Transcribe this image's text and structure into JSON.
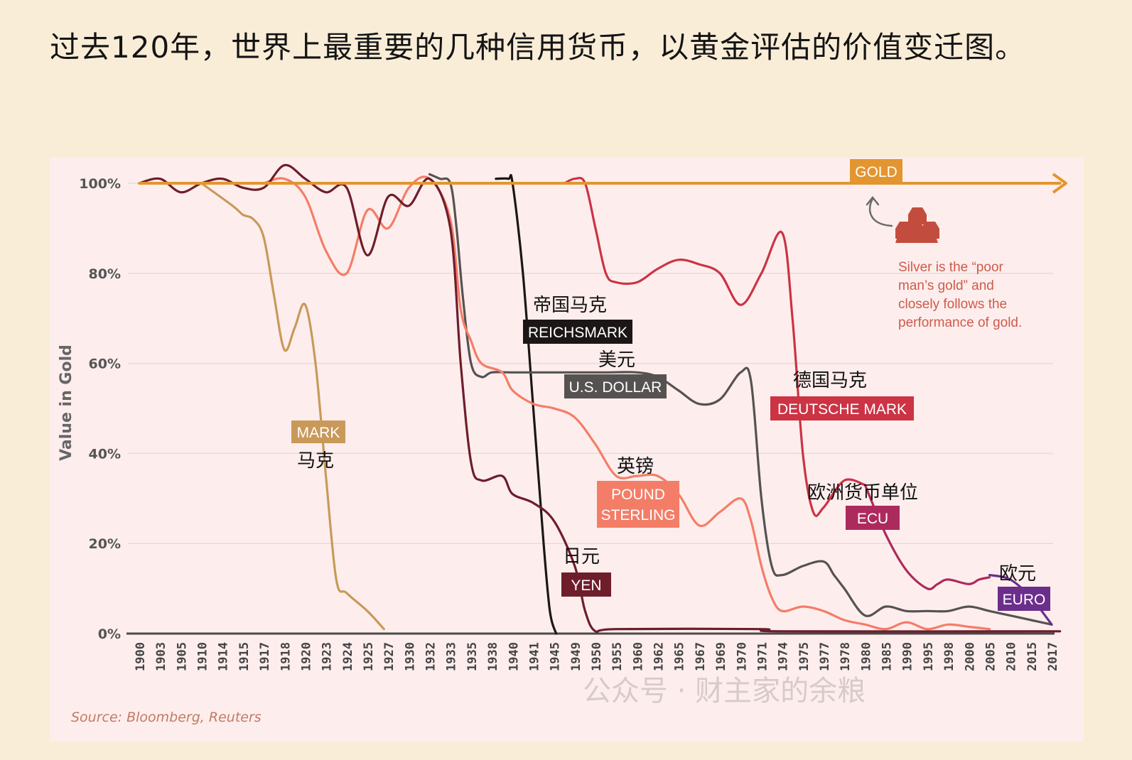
{
  "heading": "过去120年，世界上最重要的几种信用货币，以黄金评估的价值变迁图。",
  "watermark": "公众号 · 财主家的余粮",
  "chart_data": {
    "type": "line",
    "title": "",
    "xlabel": "",
    "ylabel": "Value in Gold",
    "ylim": [
      0,
      100
    ],
    "yticks": [
      "0%",
      "20%",
      "40%",
      "60%",
      "80%",
      "100%"
    ],
    "x_ticks": [
      "1900",
      "1903",
      "1905",
      "1910",
      "1914",
      "1915",
      "1917",
      "1918",
      "1920",
      "1923",
      "1924",
      "1925",
      "1927",
      "1930",
      "1932",
      "1933",
      "1935",
      "1938",
      "1940",
      "1941",
      "1945",
      "1949",
      "1950",
      "1955",
      "1960",
      "1962",
      "1965",
      "1967",
      "1969",
      "1970",
      "1971",
      "1974",
      "1975",
      "1977",
      "1978",
      "1980",
      "1985",
      "1990",
      "1995",
      "1998",
      "2000",
      "2005",
      "2010",
      "2015",
      "2017"
    ],
    "grid": true,
    "source": "Source: Bloomberg, Reuters",
    "annotation": "Silver is the “poor man’s gold” and closely follows the performance of gold.",
    "colors": {
      "gold": "#e3952f",
      "mark": "#c9995a",
      "reichsmark": "#1c1616",
      "us_dollar": "#565252",
      "pound": "#f47d67",
      "yen": "#6e1d2b",
      "deutsche_mark": "#cc3344",
      "ecu": "#ad2a5d",
      "euro": "#6b2e8b"
    },
    "series": [
      {
        "name": "GOLD",
        "label_cn": "",
        "color": "#e3952f",
        "points": [
          [
            0,
            100
          ],
          [
            44.4,
            100
          ]
        ]
      },
      {
        "name": "MARK",
        "label_cn": "马克",
        "color": "#c9995a",
        "points": [
          [
            3,
            100
          ],
          [
            4.5,
            95
          ],
          [
            5,
            93
          ],
          [
            5.5,
            92
          ],
          [
            6,
            88
          ],
          [
            6.5,
            75
          ],
          [
            7,
            63
          ],
          [
            7.5,
            68
          ],
          [
            8,
            73
          ],
          [
            8.5,
            60
          ],
          [
            9,
            35
          ],
          [
            9.5,
            12
          ],
          [
            10,
            9
          ],
          [
            11,
            5
          ],
          [
            11.8,
            1
          ]
        ]
      },
      {
        "name": "REICHSMARK",
        "label_cn": "帝国马克",
        "color": "#1c1616",
        "points": [
          [
            17.2,
            101
          ],
          [
            17.8,
            101
          ],
          [
            18,
            100
          ],
          [
            18.5,
            80
          ],
          [
            19,
            50
          ],
          [
            19.5,
            20
          ],
          [
            19.8,
            5
          ],
          [
            20.1,
            0
          ]
        ]
      },
      {
        "name": "U.S. DOLLAR",
        "label_cn": "美元",
        "color": "#565252",
        "points": [
          [
            14,
            102
          ],
          [
            14.5,
            101
          ],
          [
            15,
            100
          ],
          [
            15.3,
            90
          ],
          [
            15.6,
            75
          ],
          [
            16,
            60
          ],
          [
            16.5,
            57
          ],
          [
            17,
            58
          ],
          [
            18,
            58
          ],
          [
            21,
            58
          ],
          [
            22.5,
            58
          ],
          [
            24,
            58
          ],
          [
            25,
            57
          ],
          [
            26,
            54
          ],
          [
            27,
            51
          ],
          [
            28,
            52
          ],
          [
            29,
            58
          ],
          [
            29.5,
            56
          ],
          [
            30,
            30
          ],
          [
            30.5,
            15
          ],
          [
            31,
            13
          ],
          [
            32,
            15
          ],
          [
            33,
            16
          ],
          [
            33.5,
            13
          ],
          [
            34,
            10
          ],
          [
            35,
            4
          ],
          [
            36,
            6
          ],
          [
            37,
            5
          ],
          [
            38,
            5
          ],
          [
            39,
            5
          ],
          [
            40,
            6
          ],
          [
            41,
            5
          ],
          [
            42,
            4
          ],
          [
            43,
            3
          ],
          [
            44,
            2
          ]
        ]
      },
      {
        "name": "POUND STERLING",
        "label_cn": "英镑",
        "color": "#f47d67",
        "points": [
          [
            6,
            100
          ],
          [
            7,
            101
          ],
          [
            8,
            97
          ],
          [
            9,
            85
          ],
          [
            10,
            80
          ],
          [
            11,
            94
          ],
          [
            12,
            90
          ],
          [
            13,
            99
          ],
          [
            14,
            101
          ],
          [
            15,
            92
          ],
          [
            15.5,
            72
          ],
          [
            16,
            65
          ],
          [
            16.5,
            60
          ],
          [
            17.5,
            58
          ],
          [
            18,
            54
          ],
          [
            19,
            51
          ],
          [
            20,
            50
          ],
          [
            21,
            48
          ],
          [
            22,
            42
          ],
          [
            23,
            35
          ],
          [
            24,
            35
          ],
          [
            25,
            35
          ],
          [
            26,
            31
          ],
          [
            27,
            24
          ],
          [
            28,
            27
          ],
          [
            29,
            30
          ],
          [
            29.5,
            25
          ],
          [
            30,
            15
          ],
          [
            30.5,
            8
          ],
          [
            31,
            5
          ],
          [
            32,
            6
          ],
          [
            33,
            5
          ],
          [
            34,
            3
          ],
          [
            35,
            2
          ],
          [
            36,
            1
          ],
          [
            37,
            2.5
          ],
          [
            38,
            1
          ],
          [
            39,
            2
          ],
          [
            40,
            1.5
          ],
          [
            41,
            1
          ]
        ]
      },
      {
        "name": "YEN",
        "label_cn": "日元",
        "color": "#6e1d2b",
        "points": [
          [
            0,
            100
          ],
          [
            1,
            101
          ],
          [
            2,
            98
          ],
          [
            3,
            100
          ],
          [
            4,
            101
          ],
          [
            5,
            99
          ],
          [
            6,
            99
          ],
          [
            7,
            104
          ],
          [
            8,
            101
          ],
          [
            9,
            98
          ],
          [
            10,
            99
          ],
          [
            11,
            84
          ],
          [
            12,
            97
          ],
          [
            13,
            95
          ],
          [
            14,
            101
          ],
          [
            15,
            90
          ],
          [
            15.5,
            60
          ],
          [
            16,
            38
          ],
          [
            16.5,
            34
          ],
          [
            17.5,
            35
          ],
          [
            18,
            31
          ],
          [
            19,
            29
          ],
          [
            20,
            25
          ],
          [
            21,
            15
          ],
          [
            21.5,
            5
          ],
          [
            22,
            0.5
          ],
          [
            23,
            1
          ],
          [
            30,
            1
          ],
          [
            31,
            0.5
          ],
          [
            44.4,
            0.5
          ]
        ]
      },
      {
        "name": "DEUTSCHE MARK",
        "label_cn": "德国马克",
        "color": "#cc3344",
        "points": [
          [
            20.5,
            100
          ],
          [
            21,
            101
          ],
          [
            21.5,
            100
          ],
          [
            22,
            90
          ],
          [
            22.5,
            80
          ],
          [
            23,
            78
          ],
          [
            24,
            78
          ],
          [
            25,
            81
          ],
          [
            26,
            83
          ],
          [
            27,
            82
          ],
          [
            28,
            80
          ],
          [
            29,
            73
          ],
          [
            30,
            80
          ],
          [
            31,
            89
          ],
          [
            31.5,
            70
          ],
          [
            32,
            40
          ],
          [
            32.5,
            27
          ],
          [
            33,
            28
          ],
          [
            34,
            34
          ],
          [
            35,
            33
          ]
        ]
      },
      {
        "name": "ECU",
        "label_cn": "欧洲货币单位",
        "color": "#ad2a5d",
        "points": [
          [
            35,
            33
          ],
          [
            36,
            22
          ],
          [
            37,
            14
          ],
          [
            38,
            10
          ],
          [
            38.5,
            11
          ],
          [
            39,
            12
          ],
          [
            40,
            11
          ],
          [
            40.5,
            12
          ],
          [
            41,
            12.5
          ]
        ]
      },
      {
        "name": "EURO",
        "label_cn": "欧元",
        "color": "#6b2e8b",
        "points": [
          [
            41,
            13
          ],
          [
            42,
            12
          ],
          [
            43,
            8
          ],
          [
            44,
            2
          ]
        ]
      }
    ]
  }
}
